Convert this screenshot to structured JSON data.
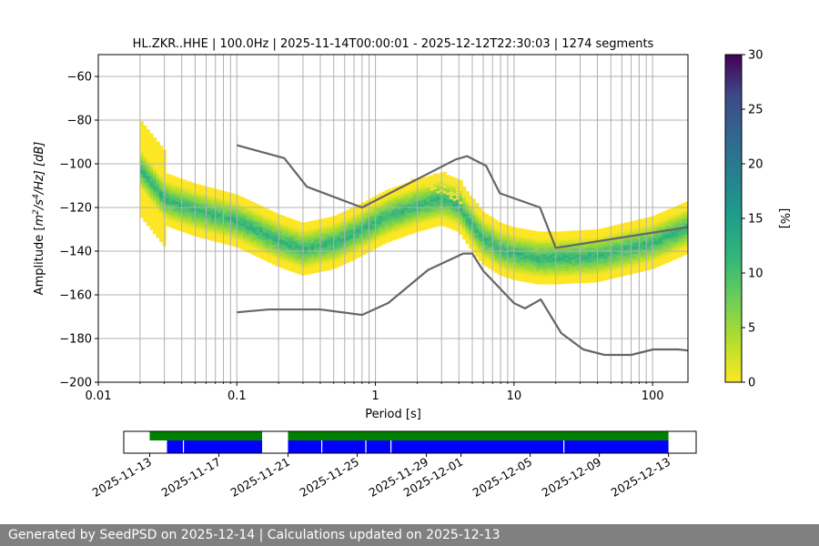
{
  "chart_data": [
    {
      "type": "heatmap",
      "title": "HL.ZKR..HHE | 100.0Hz | 2025-11-14T00:00:01 - 2025-12-12T22:30:03 | 1274 segments",
      "xlabel": "Period [s]",
      "ylabel_parts": {
        "pre": "Amplitude [",
        "m": "m",
        "e1": "2",
        "s": "/s",
        "e2": "4",
        "hz": "/Hz] [dB]"
      },
      "x_scale": "log",
      "xlim": [
        0.01,
        180
      ],
      "ylim": [
        -200,
        -50
      ],
      "x_ticks": [
        {
          "value": 0.01,
          "label": "0.01"
        },
        {
          "value": 0.1,
          "label": "0.1"
        },
        {
          "value": 1,
          "label": "1"
        },
        {
          "value": 10,
          "label": "10"
        },
        {
          "value": 100,
          "label": "100"
        }
      ],
      "y_ticks": [
        {
          "value": -60,
          "label": "−60"
        },
        {
          "value": -80,
          "label": "−80"
        },
        {
          "value": -100,
          "label": "−100"
        },
        {
          "value": -120,
          "label": "−120"
        },
        {
          "value": -140,
          "label": "−140"
        },
        {
          "value": -160,
          "label": "−160"
        },
        {
          "value": -180,
          "label": "−180"
        },
        {
          "value": -200,
          "label": "−200"
        }
      ],
      "grid": true,
      "colormap": "viridis_r",
      "colorbar": {
        "label": "[%]",
        "range": [
          0,
          30
        ],
        "ticks": [
          {
            "value": 0,
            "label": "0"
          },
          {
            "value": 5,
            "label": "5"
          },
          {
            "value": 10,
            "label": "10"
          },
          {
            "value": 15,
            "label": "15"
          },
          {
            "value": 20,
            "label": "20"
          },
          {
            "value": 25,
            "label": "25"
          },
          {
            "value": 30,
            "label": "30"
          }
        ]
      },
      "psd_mode_curve": {
        "x": [
          0.02,
          0.03,
          0.05,
          0.1,
          0.2,
          0.3,
          0.5,
          0.8,
          1.2,
          2,
          3,
          4,
          5,
          6,
          8,
          10,
          15,
          20,
          40,
          100,
          180
        ],
        "y": [
          -102,
          -116,
          -121,
          -126,
          -135,
          -139,
          -136,
          -130,
          -124,
          -119,
          -116,
          -119,
          -128,
          -134,
          -139,
          -141,
          -143,
          -143,
          -142,
          -136,
          -129
        ]
      },
      "psd_band_halfwidth_db": 12,
      "outlier_band": {
        "x": [
          0.15,
          0.2,
          0.3,
          0.5,
          0.8,
          1.2,
          2,
          3,
          5,
          8,
          12,
          20,
          30,
          50,
          100,
          180
        ],
        "y": [
          -104,
          -98,
          -92,
          -89,
          -98,
          -104,
          -110,
          -114,
          -121,
          -116,
          -103,
          -92,
          -97,
          -104,
          -108,
          -109
        ]
      },
      "series": [
        {
          "name": "NHNM",
          "x": [
            0.1,
            0.22,
            0.32,
            0.8,
            3.8,
            4.6,
            6.3,
            7.9,
            15.4,
            20,
            180
          ],
          "y": [
            -91.5,
            -97.4,
            -110.5,
            -120,
            -98,
            -96.5,
            -101,
            -113.5,
            -120,
            -138.5,
            -129
          ]
        },
        {
          "name": "NLNM",
          "x": [
            0.1,
            0.17,
            0.4,
            0.8,
            1.24,
            2.4,
            4.3,
            5,
            6,
            10,
            12,
            15.6,
            21.9,
            31.6,
            45,
            70,
            101,
            154,
            180
          ],
          "y": [
            -168,
            -166.7,
            -166.7,
            -169.2,
            -163.7,
            -148.6,
            -141.1,
            -141.1,
            -149,
            -163.8,
            -166.2,
            -162.1,
            -177.5,
            -185,
            -187.5,
            -187.5,
            -185,
            -185,
            -185.5
          ]
        }
      ]
    },
    {
      "type": "timeline",
      "x_ticks": [
        "2025-11-13",
        "2025-11-17",
        "2025-11-21",
        "2025-11-25",
        "2025-11-29",
        "2025-12-01",
        "2025-12-05",
        "2025-12-09",
        "2025-12-13"
      ],
      "x_tick_days": [
        0,
        4,
        8,
        12,
        16,
        18,
        22,
        26,
        30
      ],
      "xlim_days": [
        -1.5,
        31.6
      ],
      "bands": [
        {
          "row": "top",
          "color": "#008000",
          "segments": [
            [
              0,
              6.5
            ],
            [
              8.0,
              30.0
            ]
          ]
        },
        {
          "row": "bottom",
          "color": "#0000ff",
          "segments": [
            [
              1.0,
              6.5
            ],
            [
              8.0,
              30.0
            ]
          ]
        }
      ],
      "gaps_days": [
        1.95,
        9.95,
        12.5,
        13.95,
        23.95
      ]
    }
  ],
  "footer": {
    "text": "Generated by SeedPSD on 2025-12-14 | Calculations updated on 2025-12-13"
  }
}
